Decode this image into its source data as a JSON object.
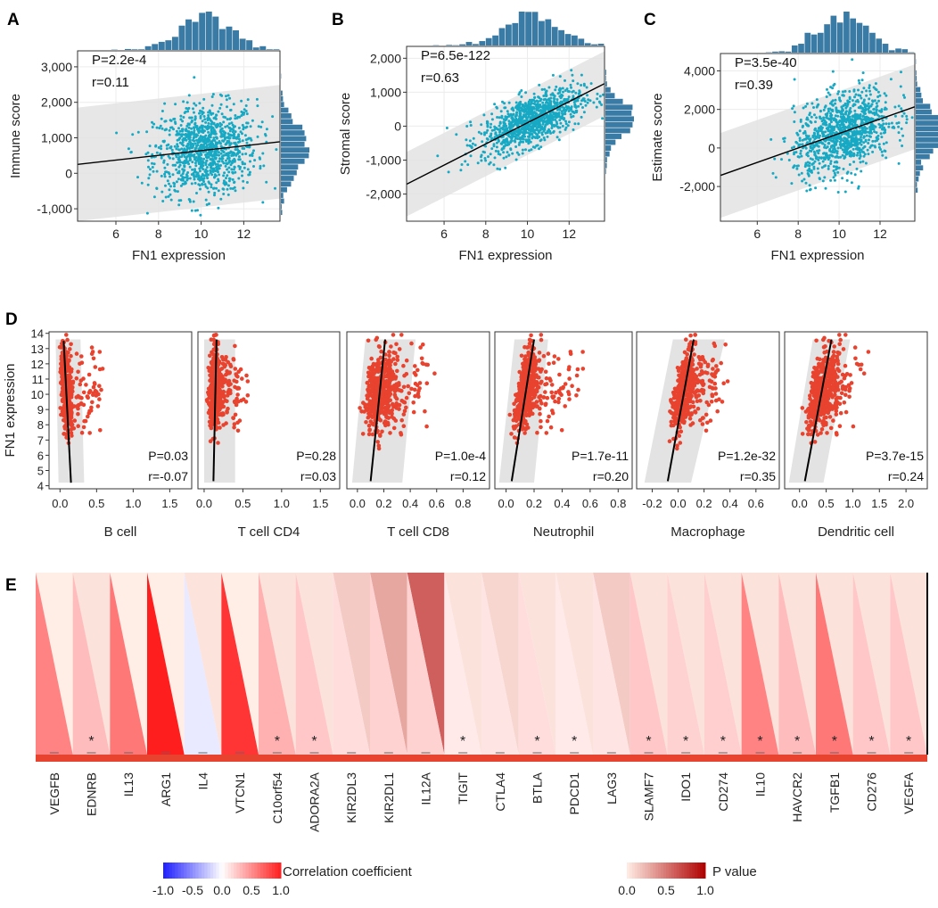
{
  "figure": {
    "panels": [
      "A",
      "B",
      "C",
      "D",
      "E"
    ]
  },
  "colors": {
    "scatter_abc": "#17a9c4",
    "hist": "#3a7ba6",
    "scatter_d": "#e8432f",
    "band": "#e3e3e3",
    "star_fill": "#e8432f"
  },
  "chart_data": [
    {
      "id": "A",
      "type": "scatter",
      "xlabel": "FN1 expression",
      "ylabel": "Immune score",
      "xlim": [
        4.2,
        13.7
      ],
      "ylim": [
        -1350,
        3450
      ],
      "xticks": [
        6,
        8,
        10,
        12
      ],
      "xticklabels": [
        "6",
        "8",
        "10",
        "12"
      ],
      "yticks": [
        -1000,
        0,
        1000,
        2000,
        3000
      ],
      "yticklabels": [
        "-1,000",
        "0",
        "1,000",
        "2,000",
        "3,000"
      ],
      "stats": [
        "P=2.2e-4",
        "r=0.11"
      ],
      "fit": {
        "slope": 67,
        "intercept": -30
      },
      "band_halfwidth": 1600,
      "cloud": {
        "n": 1050,
        "xmean": 10.2,
        "xsd": 1.2,
        "ymean": 650,
        "ysd": 640
      }
    },
    {
      "id": "B",
      "type": "scatter",
      "xlabel": "FN1 expression",
      "ylabel": "Stromal score",
      "xlim": [
        4.2,
        13.7
      ],
      "ylim": [
        -2800,
        2350
      ],
      "xticks": [
        6,
        8,
        10,
        12
      ],
      "xticklabels": [
        "6",
        "8",
        "10",
        "12"
      ],
      "yticks": [
        -2000,
        -1000,
        0,
        1000,
        2000
      ],
      "yticklabels": [
        "-2,000",
        "-1,000",
        "0",
        "1,000",
        "2,000"
      ],
      "stats": [
        "P=6.5e-122",
        "r=0.63"
      ],
      "fit": {
        "slope": 312,
        "intercept": -3020
      },
      "band_halfwidth": 950,
      "cloud": {
        "n": 1050,
        "xmean": 10.2,
        "xsd": 1.2,
        "ymean": 180,
        "ysd": 470
      }
    },
    {
      "id": "C",
      "type": "scatter",
      "xlabel": "FN1 expression",
      "ylabel": "Estimate score",
      "xlim": [
        4.2,
        13.7
      ],
      "ylim": [
        -3800,
        4900
      ],
      "xticks": [
        6,
        8,
        10,
        12
      ],
      "xticklabels": [
        "6",
        "8",
        "10",
        "12"
      ],
      "yticks": [
        -2000,
        0,
        2000,
        4000
      ],
      "yticklabels": [
        "-2,000",
        "0",
        "2,000",
        "4,000"
      ],
      "stats": [
        "P=3.5e-40",
        "r=0.39"
      ],
      "fit": {
        "slope": 375,
        "intercept": -3000
      },
      "band_halfwidth": 2200,
      "cloud": {
        "n": 1050,
        "xmean": 10.2,
        "xsd": 1.2,
        "ymean": 800,
        "ysd": 1100
      }
    },
    {
      "id": "D",
      "type": "scatter",
      "ylabel": "FN1 expression",
      "ylim": [
        3.8,
        14.1
      ],
      "yticks": [
        4,
        5,
        6,
        7,
        8,
        9,
        10,
        11,
        12,
        13,
        14
      ],
      "yticklabels": [
        "4",
        "5",
        "6",
        "7",
        "8",
        "9",
        "10",
        "11",
        "12",
        "13",
        "14"
      ],
      "subplots": [
        {
          "name": "B cell",
          "xlim": [
            -0.15,
            1.8
          ],
          "xticks": [
            0,
            0.5,
            1,
            1.5
          ],
          "xticklabels": [
            "0.0",
            "0.5",
            "1.0",
            "1.5"
          ],
          "stats": [
            "P=0.03",
            "r=-0.07"
          ],
          "line": [
            [
              0.15,
              4.2
            ],
            [
              0.05,
              13.5
            ]
          ],
          "band": [
            [
              -0.02,
              4.2
            ],
            [
              0.33,
              4.2
            ],
            [
              0.28,
              13.6
            ],
            [
              -0.06,
              13.6
            ]
          ],
          "xmean": 0.12,
          "xsd": 0.06,
          "tail": 0.5
        },
        {
          "name": "T cell CD4",
          "xlim": [
            -0.08,
            1.75
          ],
          "xticks": [
            0,
            0.5,
            1,
            1.5
          ],
          "xticklabels": [
            "0.0",
            "0.5",
            "1.0",
            "1.5"
          ],
          "stats": [
            "P=0.28",
            "r=0.03"
          ],
          "line": [
            [
              0.12,
              4.3
            ],
            [
              0.16,
              13.6
            ]
          ],
          "band": [
            [
              0.0,
              4.2
            ],
            [
              0.4,
              4.2
            ],
            [
              0.4,
              13.6
            ],
            [
              0.0,
              13.6
            ]
          ],
          "xmean": 0.14,
          "xsd": 0.07,
          "tail": 0.4
        },
        {
          "name": "T cell CD8",
          "xlim": [
            -0.08,
            1.0
          ],
          "xticks": [
            0,
            0.2,
            0.4,
            0.6,
            0.8
          ],
          "xticklabels": [
            "0.0",
            "0.2",
            "0.4",
            "0.6",
            "0.8"
          ],
          "stats": [
            "P=1.0e-4",
            "r=0.12"
          ],
          "line": [
            [
              0.1,
              4.3
            ],
            [
              0.21,
              13.6
            ]
          ],
          "band": [
            [
              -0.04,
              4.2
            ],
            [
              0.34,
              4.2
            ],
            [
              0.44,
              13.6
            ],
            [
              0.06,
              13.6
            ]
          ],
          "xmean": 0.18,
          "xsd": 0.09,
          "tail": 0.35
        },
        {
          "name": "Neutrophil",
          "xlim": [
            -0.08,
            0.9
          ],
          "xticks": [
            0,
            0.2,
            0.4,
            0.6,
            0.8
          ],
          "xticklabels": [
            "0.0",
            "0.2",
            "0.4",
            "0.6",
            "0.8"
          ],
          "stats": [
            "P=1.7e-11",
            "r=0.20"
          ],
          "line": [
            [
              0.04,
              4.3
            ],
            [
              0.2,
              13.6
            ]
          ],
          "band": [
            [
              -0.05,
              4.2
            ],
            [
              0.2,
              4.2
            ],
            [
              0.3,
              13.6
            ],
            [
              0.06,
              13.6
            ]
          ],
          "xmean": 0.12,
          "xsd": 0.06,
          "tail": 0.35
        },
        {
          "name": "Macrophage",
          "xlim": [
            -0.32,
            0.78
          ],
          "xticks": [
            -0.2,
            0,
            0.2,
            0.4,
            0.6
          ],
          "xticklabels": [
            "-0.2",
            "0.0",
            "0.2",
            "0.4",
            "0.6"
          ],
          "stats": [
            "P=1.2e-32",
            "r=0.35"
          ],
          "line": [
            [
              -0.08,
              4.3
            ],
            [
              0.12,
              13.6
            ]
          ],
          "band": [
            [
              -0.26,
              4.2
            ],
            [
              0.1,
              4.2
            ],
            [
              0.36,
              13.6
            ],
            [
              -0.04,
              13.6
            ]
          ],
          "xmean": 0.06,
          "xsd": 0.06,
          "tail": 0.3
        },
        {
          "name": "Dendritic cell",
          "xlim": [
            -0.28,
            2.4
          ],
          "xticks": [
            0,
            0.5,
            1,
            1.5,
            2
          ],
          "xticklabels": [
            "0.0",
            "0.5",
            "1.0",
            "1.5",
            "2.0"
          ],
          "stats": [
            "P=3.7e-15",
            "r=0.24"
          ],
          "line": [
            [
              0.1,
              4.3
            ],
            [
              0.6,
              13.6
            ]
          ],
          "band": [
            [
              -0.2,
              4.2
            ],
            [
              0.45,
              4.2
            ],
            [
              0.95,
              13.6
            ],
            [
              0.25,
              13.6
            ]
          ],
          "xmean": 0.45,
          "xsd": 0.2,
          "tail": 0.6
        }
      ]
    },
    {
      "id": "E",
      "type": "heatmap",
      "genes": [
        "VEGFB",
        "EDNRB",
        "IL13",
        "ARG1",
        "IL4",
        "VTCN1",
        "C10orf54",
        "ADORA2A",
        "KIR2DL3",
        "KIR2DL1",
        "IL12A",
        "TIGIT",
        "CTLA4",
        "BTLA",
        "PDCD1",
        "LAG3",
        "SLAMF7",
        "IDO1",
        "CD274",
        "IL10",
        "HAVCR2",
        "TGFB1",
        "CD276",
        "VEGFA"
      ],
      "correlation": [
        0.55,
        0.3,
        0.6,
        1.0,
        -0.1,
        0.9,
        0.35,
        0.25,
        0.15,
        0.2,
        0.2,
        0.1,
        0.12,
        0.15,
        0.1,
        0.12,
        0.25,
        0.2,
        0.22,
        0.55,
        0.3,
        0.6,
        0.25,
        0.25
      ],
      "p_value": [
        0.0,
        0.05,
        0.0,
        0.0,
        0.04,
        0.0,
        0.05,
        0.05,
        0.15,
        0.3,
        0.6,
        0.05,
        0.1,
        0.05,
        0.05,
        0.15,
        0.05,
        0.05,
        0.05,
        0.05,
        0.05,
        0.05,
        0.05,
        0.05
      ],
      "significant": [
        false,
        true,
        false,
        false,
        false,
        false,
        true,
        true,
        false,
        false,
        false,
        true,
        false,
        true,
        true,
        false,
        true,
        true,
        true,
        true,
        true,
        true,
        true,
        true
      ],
      "star": "*",
      "legend_corr": {
        "label": "Correlation coefficient",
        "ticklabels": [
          "-1.0",
          "-0.5",
          "0.0",
          "0.5",
          "1.0"
        ],
        "range": [
          -1,
          1
        ]
      },
      "legend_p": {
        "label": "P value",
        "ticklabels": [
          "0.0",
          "0.5",
          "1.0"
        ],
        "range": [
          0,
          1
        ]
      }
    }
  ]
}
